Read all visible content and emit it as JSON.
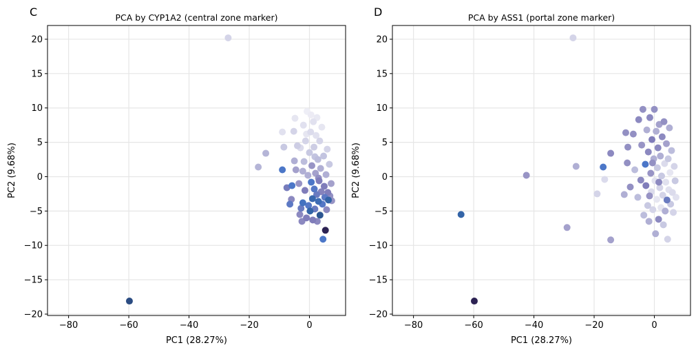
{
  "chart_data": [
    {
      "type": "scatter",
      "panel_label": "C",
      "title": "PCA by CYP1A2 (central zone marker)",
      "xlabel": "PC1 (28.27%)",
      "ylabel": "PC2 (9.68%)",
      "xlim": [
        -87,
        12
      ],
      "ylim": [
        -20.2,
        22
      ],
      "xticks": [
        -80,
        -60,
        -40,
        -20,
        0
      ],
      "yticks": [
        -20,
        -15,
        -10,
        -5,
        0,
        5,
        10,
        15,
        20
      ],
      "xtick_labels": [
        "−80",
        "−60",
        "−40",
        "−20",
        "0"
      ],
      "ytick_labels": [
        "−20",
        "−15",
        "−10",
        "−5",
        "0",
        "5",
        "10",
        "15",
        "20"
      ],
      "grid": true,
      "colormap": [
        "#fcfbfd",
        "#dadaeb",
        "#bcbddc",
        "#9e9ac8",
        "#807dba",
        "#4a77c9",
        "#2c5e9c",
        "#2a3d6e",
        "#2d1a4a"
      ],
      "points": [
        {
          "x": -27.0,
          "y": 20.2,
          "v": 0.15
        },
        {
          "x": -59.8,
          "y": -18.1,
          "v": 0.82
        },
        {
          "x": -17.0,
          "y": 1.4,
          "v": 0.28
        },
        {
          "x": -14.5,
          "y": 3.4,
          "v": 0.28
        },
        {
          "x": -9.0,
          "y": 1.0,
          "v": 0.62
        },
        {
          "x": -9.0,
          "y": 6.5,
          "v": 0.1
        },
        {
          "x": -8.5,
          "y": 4.3,
          "v": 0.2
        },
        {
          "x": -7.5,
          "y": -1.6,
          "v": 0.52
        },
        {
          "x": -6.5,
          "y": -4.0,
          "v": 0.58
        },
        {
          "x": -5.8,
          "y": -1.3,
          "v": 0.62
        },
        {
          "x": -6.0,
          "y": -3.3,
          "v": 0.45
        },
        {
          "x": -5.0,
          "y": 2.3,
          "v": 0.3
        },
        {
          "x": -5.2,
          "y": 6.6,
          "v": 0.15
        },
        {
          "x": -4.8,
          "y": 8.5,
          "v": 0.08
        },
        {
          "x": -4.5,
          "y": 1.0,
          "v": 0.35
        },
        {
          "x": -4.0,
          "y": 4.5,
          "v": 0.18
        },
        {
          "x": -3.5,
          "y": -1.0,
          "v": 0.4
        },
        {
          "x": -3.2,
          "y": -5.5,
          "v": 0.45
        },
        {
          "x": -2.8,
          "y": -4.6,
          "v": 0.55
        },
        {
          "x": -2.5,
          "y": -6.5,
          "v": 0.45
        },
        {
          "x": -2.2,
          "y": -3.8,
          "v": 0.65
        },
        {
          "x": -2.0,
          "y": 7.5,
          "v": 0.1
        },
        {
          "x": -1.8,
          "y": 2.2,
          "v": 0.25
        },
        {
          "x": -1.5,
          "y": -2.0,
          "v": 0.5
        },
        {
          "x": -1.3,
          "y": 5.2,
          "v": 0.15
        },
        {
          "x": -1.0,
          "y": -6.0,
          "v": 0.5
        },
        {
          "x": -0.8,
          "y": 9.5,
          "v": 0.05
        },
        {
          "x": -0.5,
          "y": 0.2,
          "v": 0.3
        },
        {
          "x": -0.3,
          "y": -4.2,
          "v": 0.6
        },
        {
          "x": 0.0,
          "y": 3.5,
          "v": 0.2
        },
        {
          "x": 0.2,
          "y": -5.0,
          "v": 0.72
        },
        {
          "x": 0.4,
          "y": 6.5,
          "v": 0.12
        },
        {
          "x": 0.6,
          "y": -0.8,
          "v": 0.62
        },
        {
          "x": 0.8,
          "y": 1.6,
          "v": 0.4
        },
        {
          "x": 1.0,
          "y": -3.2,
          "v": 0.7
        },
        {
          "x": 1.1,
          "y": -6.3,
          "v": 0.5
        },
        {
          "x": 1.3,
          "y": 8.0,
          "v": 0.1
        },
        {
          "x": 1.5,
          "y": 4.3,
          "v": 0.18
        },
        {
          "x": 1.6,
          "y": -1.8,
          "v": 0.6
        },
        {
          "x": 1.8,
          "y": -4.7,
          "v": 0.55
        },
        {
          "x": 2.0,
          "y": 0.5,
          "v": 0.35
        },
        {
          "x": 2.2,
          "y": 6.0,
          "v": 0.1
        },
        {
          "x": 2.4,
          "y": -2.6,
          "v": 0.55
        },
        {
          "x": 2.6,
          "y": -6.5,
          "v": 0.45
        },
        {
          "x": 2.8,
          "y": 2.5,
          "v": 0.25
        },
        {
          "x": 3.0,
          "y": -3.6,
          "v": 0.68
        },
        {
          "x": 3.2,
          "y": -0.6,
          "v": 0.5
        },
        {
          "x": 3.4,
          "y": 5.2,
          "v": 0.15
        },
        {
          "x": 3.5,
          "y": -5.6,
          "v": 0.78
        },
        {
          "x": 3.7,
          "y": 1.2,
          "v": 0.3
        },
        {
          "x": 3.9,
          "y": -2.2,
          "v": 0.48
        },
        {
          "x": 4.1,
          "y": 7.2,
          "v": 0.08
        },
        {
          "x": 4.3,
          "y": -4.0,
          "v": 0.6
        },
        {
          "x": 4.5,
          "y": -9.1,
          "v": 0.62
        },
        {
          "x": 4.7,
          "y": 3.0,
          "v": 0.22
        },
        {
          "x": 4.9,
          "y": -1.4,
          "v": 0.5
        },
        {
          "x": 5.1,
          "y": -3.0,
          "v": 0.58
        },
        {
          "x": 5.3,
          "y": -7.8,
          "v": 0.97
        },
        {
          "x": 5.5,
          "y": 0.3,
          "v": 0.3
        },
        {
          "x": 5.7,
          "y": -4.8,
          "v": 0.45
        },
        {
          "x": 5.9,
          "y": 4.0,
          "v": 0.15
        },
        {
          "x": 6.1,
          "y": -2.3,
          "v": 0.5
        },
        {
          "x": 6.3,
          "y": -3.4,
          "v": 0.72
        },
        {
          "x": 6.6,
          "y": 1.8,
          "v": 0.2
        },
        {
          "x": 6.8,
          "y": -2.8,
          "v": 0.42
        },
        {
          "x": 7.2,
          "y": -1.0,
          "v": 0.35
        },
        {
          "x": 7.4,
          "y": -3.5,
          "v": 0.4
        },
        {
          "x": -3.0,
          "y": 4.2,
          "v": 0.12
        },
        {
          "x": -1.0,
          "y": 6.2,
          "v": 0.08
        },
        {
          "x": 0.5,
          "y": 9.0,
          "v": 0.06
        },
        {
          "x": 2.5,
          "y": 8.6,
          "v": 0.07
        },
        {
          "x": -2.2,
          "y": 0.8,
          "v": 0.3
        },
        {
          "x": 1.8,
          "y": 2.9,
          "v": 0.22
        },
        {
          "x": 3.0,
          "y": -0.2,
          "v": 0.42
        }
      ]
    },
    {
      "type": "scatter",
      "panel_label": "D",
      "title": "PCA by ASS1 (portal zone marker)",
      "xlabel": "PC1 (28.27%)",
      "ylabel": "PC2 (9.68%)",
      "xlim": [
        -87,
        12
      ],
      "ylim": [
        -20.2,
        22
      ],
      "xticks": [
        -80,
        -60,
        -40,
        -20,
        0
      ],
      "yticks": [
        -20,
        -15,
        -10,
        -5,
        0,
        5,
        10,
        15,
        20
      ],
      "xtick_labels": [
        "−80",
        "−60",
        "−40",
        "−20",
        "0"
      ],
      "ytick_labels": [
        "−20",
        "−15",
        "−10",
        "−5",
        "0",
        "5",
        "10",
        "15",
        "20"
      ],
      "grid": true,
      "colormap": [
        "#fcfbfd",
        "#dadaeb",
        "#bcbddc",
        "#9e9ac8",
        "#807dba",
        "#4a77c9",
        "#2c5e9c",
        "#2a3d6e",
        "#2d1a4a"
      ],
      "points": [
        {
          "x": -27.0,
          "y": 20.2,
          "v": 0.15
        },
        {
          "x": -59.8,
          "y": -18.1,
          "v": 0.97
        },
        {
          "x": -64.2,
          "y": -5.5,
          "v": 0.72
        },
        {
          "x": -42.5,
          "y": 0.2,
          "v": 0.4
        },
        {
          "x": -29.0,
          "y": -7.4,
          "v": 0.35
        },
        {
          "x": -26.0,
          "y": 1.5,
          "v": 0.3
        },
        {
          "x": -19.0,
          "y": -2.5,
          "v": 0.15
        },
        {
          "x": -17.0,
          "y": 1.4,
          "v": 0.62
        },
        {
          "x": -16.5,
          "y": -0.4,
          "v": 0.12
        },
        {
          "x": -14.5,
          "y": 3.4,
          "v": 0.45
        },
        {
          "x": -14.5,
          "y": -9.2,
          "v": 0.35
        },
        {
          "x": -10.0,
          "y": -2.6,
          "v": 0.3
        },
        {
          "x": -9.5,
          "y": 6.4,
          "v": 0.42
        },
        {
          "x": -9.0,
          "y": 2.0,
          "v": 0.42
        },
        {
          "x": -8.8,
          "y": 4.3,
          "v": 0.42
        },
        {
          "x": -8.0,
          "y": -1.5,
          "v": 0.42
        },
        {
          "x": -7.0,
          "y": 6.2,
          "v": 0.42
        },
        {
          "x": -6.5,
          "y": 1.0,
          "v": 0.25
        },
        {
          "x": -5.5,
          "y": -3.0,
          "v": 0.25
        },
        {
          "x": -5.2,
          "y": 8.3,
          "v": 0.45
        },
        {
          "x": -4.5,
          "y": -0.5,
          "v": 0.45
        },
        {
          "x": -4.2,
          "y": 4.6,
          "v": 0.4
        },
        {
          "x": -3.8,
          "y": 9.8,
          "v": 0.42
        },
        {
          "x": -3.5,
          "y": -5.6,
          "v": 0.25
        },
        {
          "x": -3.0,
          "y": 1.8,
          "v": 0.62
        },
        {
          "x": -2.8,
          "y": -1.3,
          "v": 0.5
        },
        {
          "x": -2.5,
          "y": 6.8,
          "v": 0.3
        },
        {
          "x": -2.2,
          "y": -4.2,
          "v": 0.2
        },
        {
          "x": -2.0,
          "y": 3.6,
          "v": 0.45
        },
        {
          "x": -1.8,
          "y": -6.5,
          "v": 0.3
        },
        {
          "x": -1.5,
          "y": 8.6,
          "v": 0.45
        },
        {
          "x": -1.2,
          "y": 0.5,
          "v": 0.4
        },
        {
          "x": -1.0,
          "y": -2.2,
          "v": 0.12
        },
        {
          "x": -0.8,
          "y": 5.4,
          "v": 0.5
        },
        {
          "x": -0.5,
          "y": -4.8,
          "v": 0.15
        },
        {
          "x": -0.2,
          "y": 2.6,
          "v": 0.3
        },
        {
          "x": 0.0,
          "y": 9.8,
          "v": 0.42
        },
        {
          "x": 0.2,
          "y": -0.6,
          "v": 0.1
        },
        {
          "x": 0.4,
          "y": -8.3,
          "v": 0.3
        },
        {
          "x": 0.6,
          "y": 6.6,
          "v": 0.3
        },
        {
          "x": 0.8,
          "y": -3.3,
          "v": 0.08
        },
        {
          "x": 1.0,
          "y": 1.3,
          "v": 0.2
        },
        {
          "x": 1.2,
          "y": 4.2,
          "v": 0.45
        },
        {
          "x": 1.4,
          "y": -6.2,
          "v": 0.45
        },
        {
          "x": 1.6,
          "y": 7.6,
          "v": 0.35
        },
        {
          "x": 1.8,
          "y": -1.6,
          "v": 0.15
        },
        {
          "x": 2.0,
          "y": 3.0,
          "v": 0.3
        },
        {
          "x": 2.2,
          "y": -4.5,
          "v": 0.08
        },
        {
          "x": 2.4,
          "y": 0.1,
          "v": 0.2
        },
        {
          "x": 2.6,
          "y": 5.8,
          "v": 0.45
        },
        {
          "x": 2.8,
          "y": -2.7,
          "v": 0.15
        },
        {
          "x": 3.0,
          "y": -7.0,
          "v": 0.2
        },
        {
          "x": 3.2,
          "y": 8.0,
          "v": 0.42
        },
        {
          "x": 3.4,
          "y": 1.9,
          "v": 0.12
        },
        {
          "x": 3.6,
          "y": -5.0,
          "v": 0.3
        },
        {
          "x": 3.8,
          "y": -0.8,
          "v": 0.1
        },
        {
          "x": 4.0,
          "y": 4.8,
          "v": 0.35
        },
        {
          "x": 4.2,
          "y": -3.4,
          "v": 0.55
        },
        {
          "x": 4.4,
          "y": -9.1,
          "v": 0.15
        },
        {
          "x": 4.6,
          "y": 2.6,
          "v": 0.2
        },
        {
          "x": 4.8,
          "y": -1.9,
          "v": 0.1
        },
        {
          "x": 5.0,
          "y": 7.1,
          "v": 0.3
        },
        {
          "x": 5.2,
          "y": 0.6,
          "v": 0.08
        },
        {
          "x": 5.4,
          "y": -4.0,
          "v": 0.2
        },
        {
          "x": 5.7,
          "y": 3.8,
          "v": 0.25
        },
        {
          "x": 6.0,
          "y": -2.3,
          "v": 0.12
        },
        {
          "x": 6.3,
          "y": -5.2,
          "v": 0.15
        },
        {
          "x": 6.6,
          "y": 1.5,
          "v": 0.15
        },
        {
          "x": 6.9,
          "y": -0.6,
          "v": 0.2
        },
        {
          "x": 7.2,
          "y": -3.0,
          "v": 0.1
        },
        {
          "x": -0.6,
          "y": 2.0,
          "v": 0.42
        },
        {
          "x": 1.5,
          "y": -0.8,
          "v": 0.45
        },
        {
          "x": -1.6,
          "y": -2.8,
          "v": 0.4
        }
      ]
    }
  ]
}
